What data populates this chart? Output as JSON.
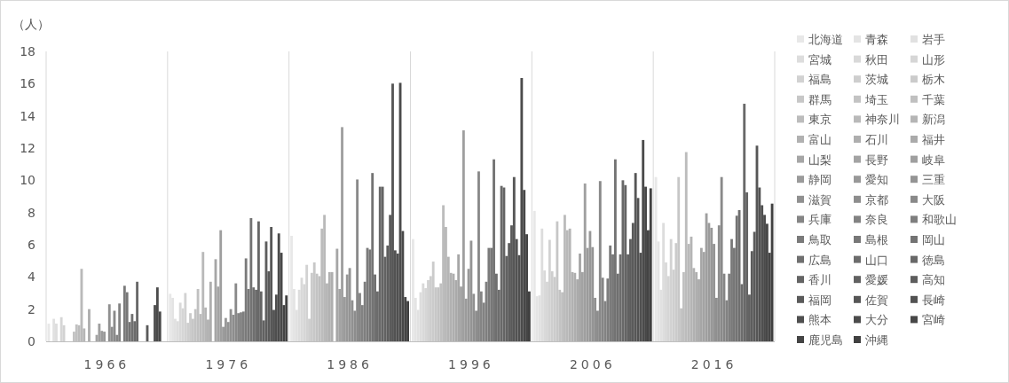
{
  "chart_data": {
    "type": "bar",
    "ylabel": "（人）",
    "categories": [
      "1966",
      "1976",
      "1986",
      "1996",
      "2006",
      "2016"
    ],
    "ylim": [
      0,
      18
    ],
    "yticks": [
      0,
      2,
      4,
      6,
      8,
      10,
      12,
      14,
      16,
      18
    ],
    "grid": "x",
    "legend": "right",
    "series": [
      {
        "name": "北海道",
        "color": "#e8e8e8",
        "values": [
          1.1,
          2.95,
          6.55,
          6.35,
          8.1,
          10.2
        ]
      },
      {
        "name": "青森",
        "color": "#e4e4e4",
        "values": [
          null,
          2.7,
          3.25,
          2.7,
          2.8,
          6.2
        ]
      },
      {
        "name": "岩手",
        "color": "#e1e1e1",
        "values": [
          1.4,
          1.4,
          1.95,
          1.95,
          2.85,
          3.2
        ]
      },
      {
        "name": "宮城",
        "color": "#dddddd",
        "values": [
          1.1,
          1.25,
          3.2,
          3.05,
          7.0,
          7.35
        ]
      },
      {
        "name": "秋田",
        "color": "#d9d9d9",
        "values": [
          null,
          2.4,
          3.95,
          3.6,
          4.4,
          4.9
        ]
      },
      {
        "name": "山形",
        "color": "#d6d6d6",
        "values": [
          1.5,
          2.05,
          3.55,
          3.3,
          3.7,
          4.05
        ]
      },
      {
        "name": "福島",
        "color": "#d2d2d2",
        "values": [
          1.0,
          3.0,
          4.75,
          3.8,
          6.3,
          6.35
        ]
      },
      {
        "name": "茨城",
        "color": "#cecece",
        "values": [
          null,
          1.15,
          1.4,
          4.05,
          4.35,
          4.45
        ]
      },
      {
        "name": "栃木",
        "color": "#cbcbcb",
        "values": [
          null,
          1.75,
          4.25,
          4.95,
          4.0,
          6.1
        ]
      },
      {
        "name": "群馬",
        "color": "#c7c7c7",
        "values": [
          null,
          1.4,
          4.9,
          3.35,
          7.45,
          10.2
        ]
      },
      {
        "name": "埼玉",
        "color": "#c3c3c3",
        "values": [
          0.6,
          2.0,
          4.2,
          3.35,
          3.2,
          2.05
        ]
      },
      {
        "name": "千葉",
        "color": "#c0c0c0",
        "values": [
          1.05,
          3.25,
          4.05,
          3.6,
          3.05,
          4.3
        ]
      },
      {
        "name": "東京",
        "color": "#bcbcbc",
        "values": [
          1.0,
          1.7,
          7.0,
          8.45,
          7.85,
          11.75
        ]
      },
      {
        "name": "神奈川",
        "color": "#b9b9b9",
        "values": [
          4.5,
          5.55,
          7.85,
          7.1,
          6.9,
          6.05
        ]
      },
      {
        "name": "新潟",
        "color": "#b5b5b5",
        "values": [
          0.8,
          2.1,
          3.6,
          5.25,
          7.0,
          6.5
        ]
      },
      {
        "name": "富山",
        "color": "#b1b1b1",
        "values": [
          null,
          1.35,
          4.3,
          4.25,
          4.3,
          4.55
        ]
      },
      {
        "name": "石川",
        "color": "#aeaeae",
        "values": [
          2.0,
          3.7,
          4.3,
          4.2,
          4.25,
          4.3
        ]
      },
      {
        "name": "福井",
        "color": "#aaaaaa",
        "values": [
          null,
          null,
          null,
          3.8,
          3.85,
          3.85
        ]
      },
      {
        "name": "山梨",
        "color": "#a6a6a6",
        "values": [
          null,
          5.1,
          5.75,
          5.4,
          5.45,
          5.8
        ]
      },
      {
        "name": "長野",
        "color": "#a3a3a3",
        "values": [
          0.4,
          3.4,
          3.25,
          3.4,
          4.3,
          5.55
        ]
      },
      {
        "name": "岐阜",
        "color": "#9f9f9f",
        "values": [
          1.1,
          6.9,
          13.3,
          13.1,
          9.8,
          7.95
        ]
      },
      {
        "name": "静岡",
        "color": "#9b9b9b",
        "values": [
          0.65,
          0.9,
          2.75,
          2.65,
          5.8,
          7.35
        ]
      },
      {
        "name": "愛知",
        "color": "#989898",
        "values": [
          0.6,
          1.45,
          4.15,
          4.5,
          6.85,
          7.05
        ]
      },
      {
        "name": "三重",
        "color": "#949494",
        "values": [
          null,
          1.2,
          4.55,
          6.25,
          5.85,
          6.05
        ]
      },
      {
        "name": "滋賀",
        "color": "#909090",
        "values": [
          2.3,
          2.0,
          2.55,
          2.95,
          2.7,
          2.7
        ]
      },
      {
        "name": "京都",
        "color": "#8d8d8d",
        "values": [
          0.9,
          1.65,
          1.9,
          1.9,
          1.9,
          7.2
        ]
      },
      {
        "name": "大阪",
        "color": "#898989",
        "values": [
          1.9,
          3.6,
          10.05,
          10.55,
          9.95,
          10.2
        ]
      },
      {
        "name": "兵庫",
        "color": "#858585",
        "values": [
          0.4,
          1.75,
          3.0,
          3.1,
          3.95,
          4.2
        ]
      },
      {
        "name": "奈良",
        "color": "#828282",
        "values": [
          2.35,
          1.8,
          2.25,
          2.4,
          2.5,
          2.55
        ]
      },
      {
        "name": "和歌山",
        "color": "#7e7e7e",
        "values": [
          null,
          1.85,
          3.7,
          3.7,
          3.9,
          4.2
        ]
      },
      {
        "name": "鳥取",
        "color": "#7a7a7a",
        "values": [
          3.45,
          5.15,
          5.8,
          5.8,
          5.95,
          6.35
        ]
      },
      {
        "name": "島根",
        "color": "#777777",
        "values": [
          3.05,
          3.25,
          5.7,
          5.8,
          5.4,
          5.8
        ]
      },
      {
        "name": "岡山",
        "color": "#737373",
        "values": [
          1.2,
          7.65,
          10.45,
          11.3,
          11.3,
          7.8
        ]
      },
      {
        "name": "広島",
        "color": "#6f6f6f",
        "values": [
          1.7,
          3.35,
          4.15,
          4.2,
          4.2,
          8.15
        ]
      },
      {
        "name": "山口",
        "color": "#6c6c6c",
        "values": [
          1.25,
          3.2,
          3.1,
          3.2,
          5.4,
          3.55
        ]
      },
      {
        "name": "徳島",
        "color": "#686868",
        "values": [
          3.7,
          7.45,
          9.6,
          9.65,
          10.0,
          14.75
        ]
      },
      {
        "name": "香川",
        "color": "#646464",
        "values": [
          null,
          3.1,
          9.6,
          9.55,
          9.7,
          9.25
        ]
      },
      {
        "name": "愛媛",
        "color": "#616161",
        "values": [
          null,
          1.3,
          5.25,
          5.3,
          5.4,
          2.9
        ]
      },
      {
        "name": "高知",
        "color": "#5d5d5d",
        "values": [
          null,
          6.2,
          5.95,
          6.1,
          6.35,
          5.6
        ]
      },
      {
        "name": "福岡",
        "color": "#5a5a5a",
        "values": [
          1.0,
          4.35,
          7.85,
          7.2,
          7.35,
          6.8
        ]
      },
      {
        "name": "佐賀",
        "color": "#565656",
        "values": [
          null,
          7.1,
          16.0,
          10.2,
          10.45,
          12.15
        ]
      },
      {
        "name": "長崎",
        "color": "#525252",
        "values": [
          null,
          1.95,
          5.65,
          6.35,
          8.9,
          9.55
        ]
      },
      {
        "name": "熊本",
        "color": "#4f4f4f",
        "values": [
          2.25,
          2.9,
          5.45,
          5.35,
          5.5,
          8.45
        ]
      },
      {
        "name": "大分",
        "color": "#4b4b4b",
        "values": [
          3.35,
          6.7,
          16.05,
          16.35,
          12.5,
          7.85
        ]
      },
      {
        "name": "宮崎",
        "color": "#474747",
        "values": [
          1.85,
          5.5,
          6.85,
          9.4,
          9.6,
          7.3
        ]
      },
      {
        "name": "鹿児島",
        "color": "#444444",
        "values": [
          null,
          2.25,
          2.75,
          6.65,
          6.9,
          5.5
        ]
      },
      {
        "name": "沖縄",
        "color": "#404040",
        "values": [
          null,
          2.85,
          2.5,
          3.1,
          9.5,
          8.55
        ]
      }
    ]
  }
}
